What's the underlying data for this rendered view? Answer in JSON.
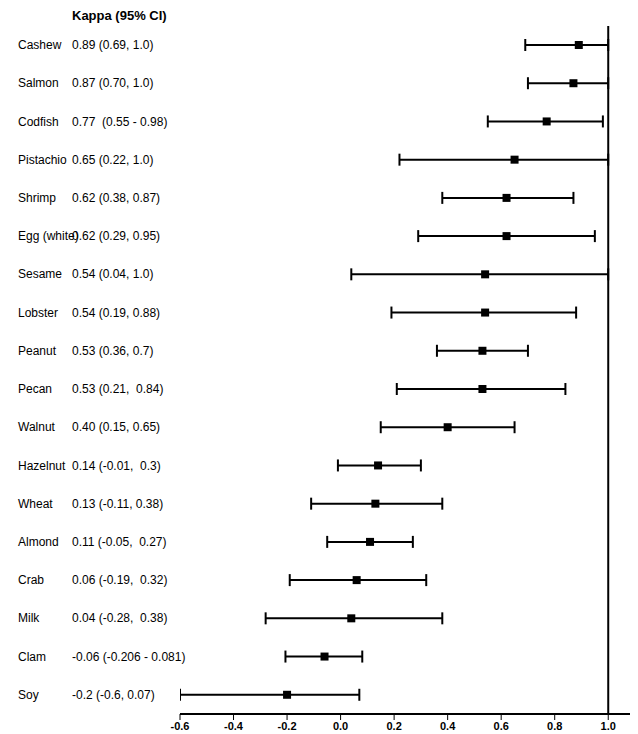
{
  "chart_data": {
    "type": "forest",
    "title": "Kappa (95% CI)",
    "orientation": "horizontal",
    "color": "#000000",
    "marker": "square",
    "categories": [
      "Cashew",
      "Salmon",
      "Codfish",
      "Pistachio",
      "Shrimp",
      "Egg (white)",
      "Sesame",
      "Lobster",
      "Peanut",
      "Pecan",
      "Walnut",
      "Hazelnut",
      "Wheat",
      "Almond",
      "Crab",
      "Milk",
      "Clam",
      "Soy"
    ],
    "values": [
      0.89,
      0.87,
      0.77,
      0.65,
      0.62,
      0.62,
      0.54,
      0.54,
      0.53,
      0.53,
      0.4,
      0.14,
      0.13,
      0.11,
      0.06,
      0.04,
      -0.06,
      -0.2
    ],
    "ci_lower": [
      0.69,
      0.7,
      0.55,
      0.22,
      0.38,
      0.29,
      0.04,
      0.19,
      0.36,
      0.21,
      0.15,
      -0.01,
      -0.11,
      -0.05,
      -0.19,
      -0.28,
      -0.206,
      -0.6
    ],
    "ci_upper": [
      1.0,
      1.0,
      0.98,
      1.0,
      0.87,
      0.95,
      1.0,
      0.88,
      0.7,
      0.84,
      0.65,
      0.3,
      0.38,
      0.27,
      0.32,
      0.38,
      0.081,
      0.07
    ],
    "value_labels": [
      "0.89 (0.69, 1.0)",
      "0.87 (0.70, 1.0)",
      "0.77  (0.55 - 0.98)",
      "0.65 (0.22, 1.0)",
      "0.62 (0.38, 0.87)",
      "0.62 (0.29, 0.95)",
      "0.54 (0.04, 1.0)",
      "0.54 (0.19, 0.88)",
      "0.53 (0.36, 0.7)",
      "0.53 (0.21,  0.84)",
      "0.40 (0.15, 0.65)",
      "0.14 (-0.01,  0.3)",
      "0.13 (-0.11, 0.38)",
      "0.11 (-0.05,  0.27)",
      "0.06 (-0.19,  0.32)",
      "0.04 (-0.28,  0.38)",
      "-0.06 (-0.206 - 0.081)",
      "-0.2 (-0.6, 0.07)"
    ],
    "xlim": [
      -0.6,
      1.1
    ],
    "xticks": [
      -0.6,
      -0.4,
      -0.2,
      {
        "value": 0,
        "label": "0.0"
      },
      0.2,
      0.4,
      0.6,
      0.8,
      {
        "value": 1,
        "label": "1.0"
      }
    ],
    "reference_x": 1.0
  }
}
